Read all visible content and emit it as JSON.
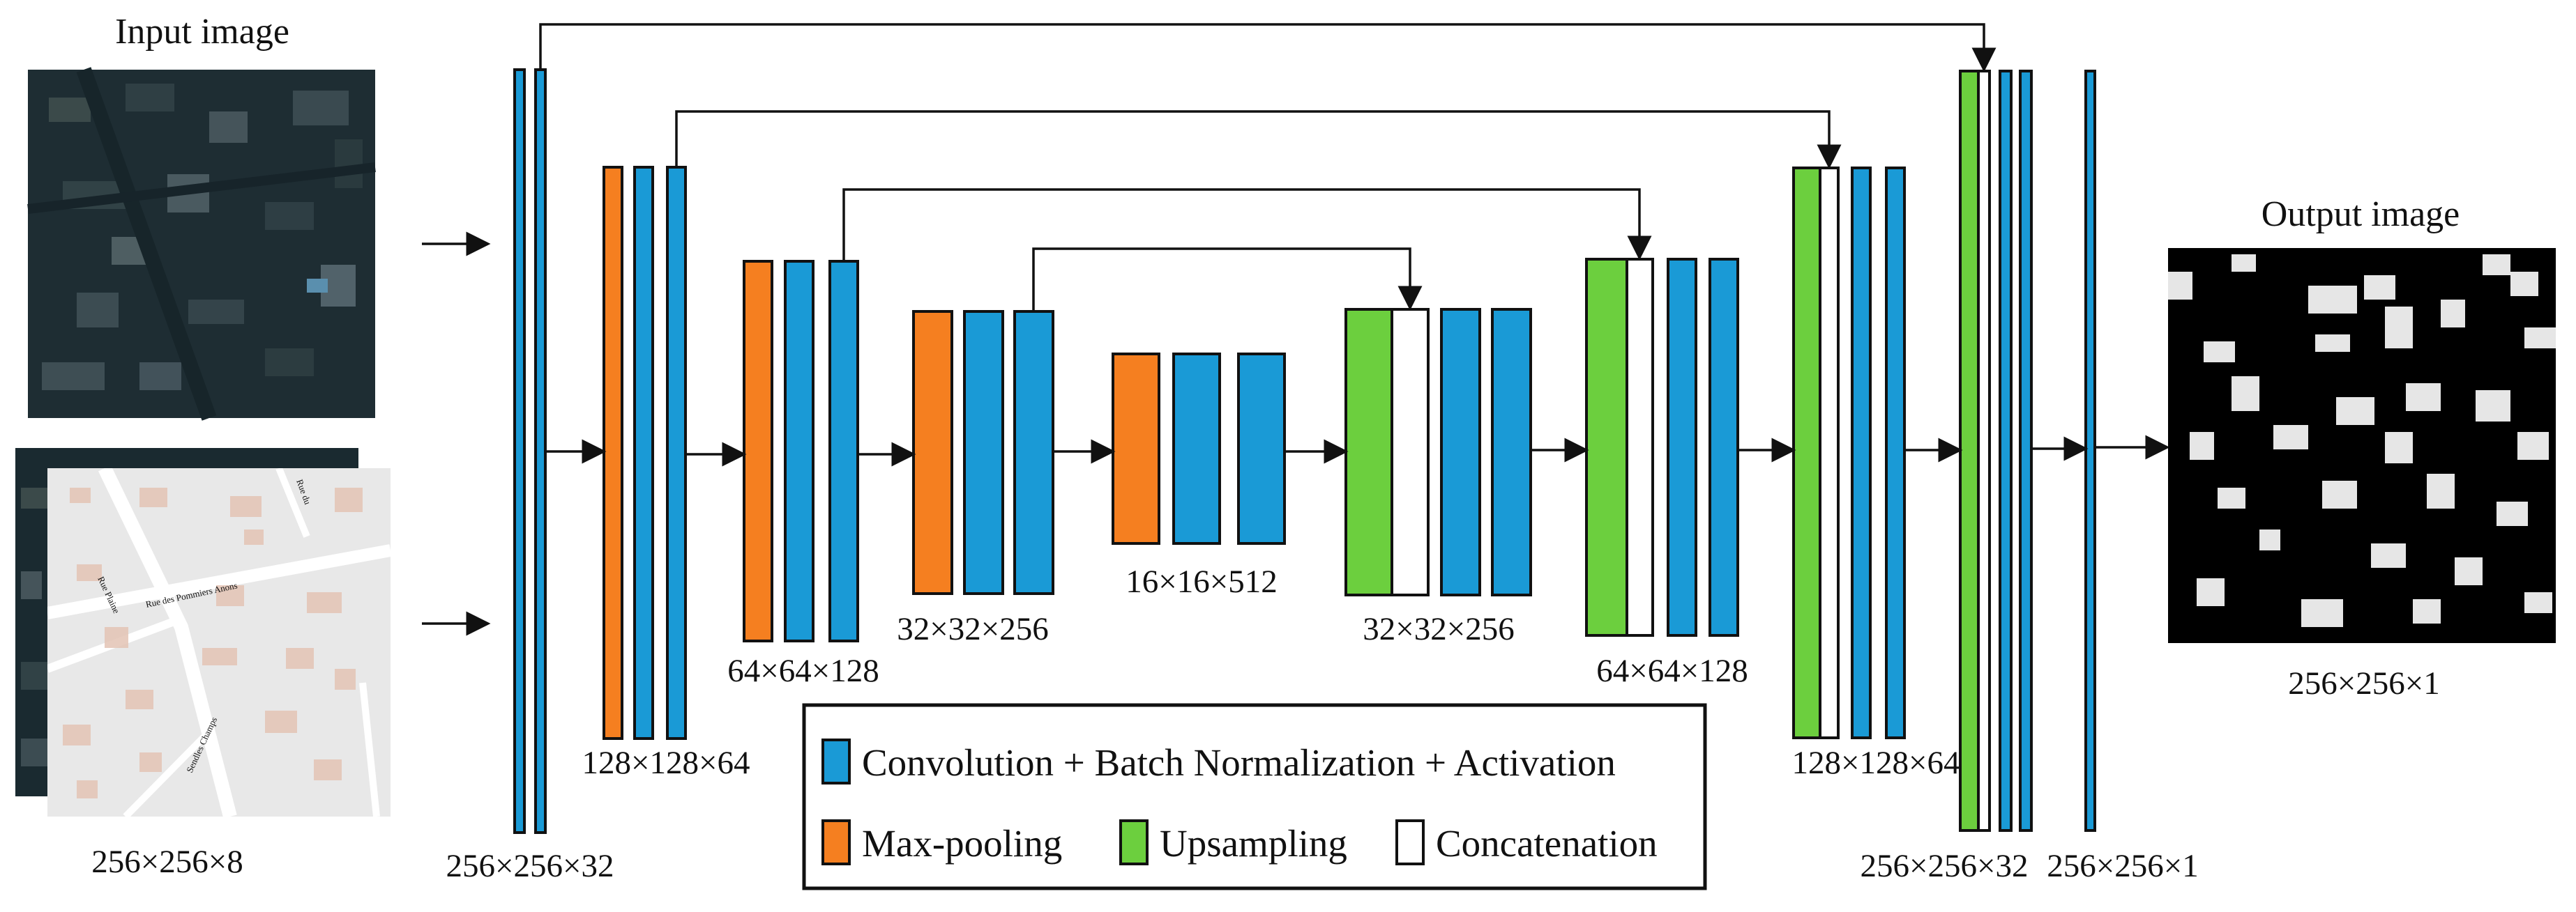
{
  "colors": {
    "conv": "#1a9ad6",
    "pool": "#f57f20",
    "upsample": "#6ccf3e",
    "concat": "#ffffff",
    "map_background": "#e8e8e8",
    "map_road": "#ffffff",
    "map_building": "#e3c3b4",
    "satellite": "#1e2d33",
    "mask_background": "#000000",
    "mask_building": "#e6e6e6"
  },
  "input": {
    "title": "Input image",
    "size_label": "256×256×8",
    "map_texts": [
      "Rue des Pommiers Anons",
      "Rue Plaine",
      "Rue du",
      "Sendles Champs"
    ]
  },
  "output": {
    "title": "Output image",
    "size_label": "256×256×1"
  },
  "encoder_labels": [
    "256×256×32",
    "128×128×64",
    "64×64×128",
    "32×32×256",
    "16×16×512"
  ],
  "decoder_labels": [
    "32×32×256",
    "64×64×128",
    "128×128×64",
    "256×256×32",
    "256×256×1"
  ],
  "legend": {
    "conv": "Convolution + Batch Normalization + Activation",
    "pool": "Max-pooling",
    "upsample": "Upsampling",
    "concat": "Concatenation"
  }
}
